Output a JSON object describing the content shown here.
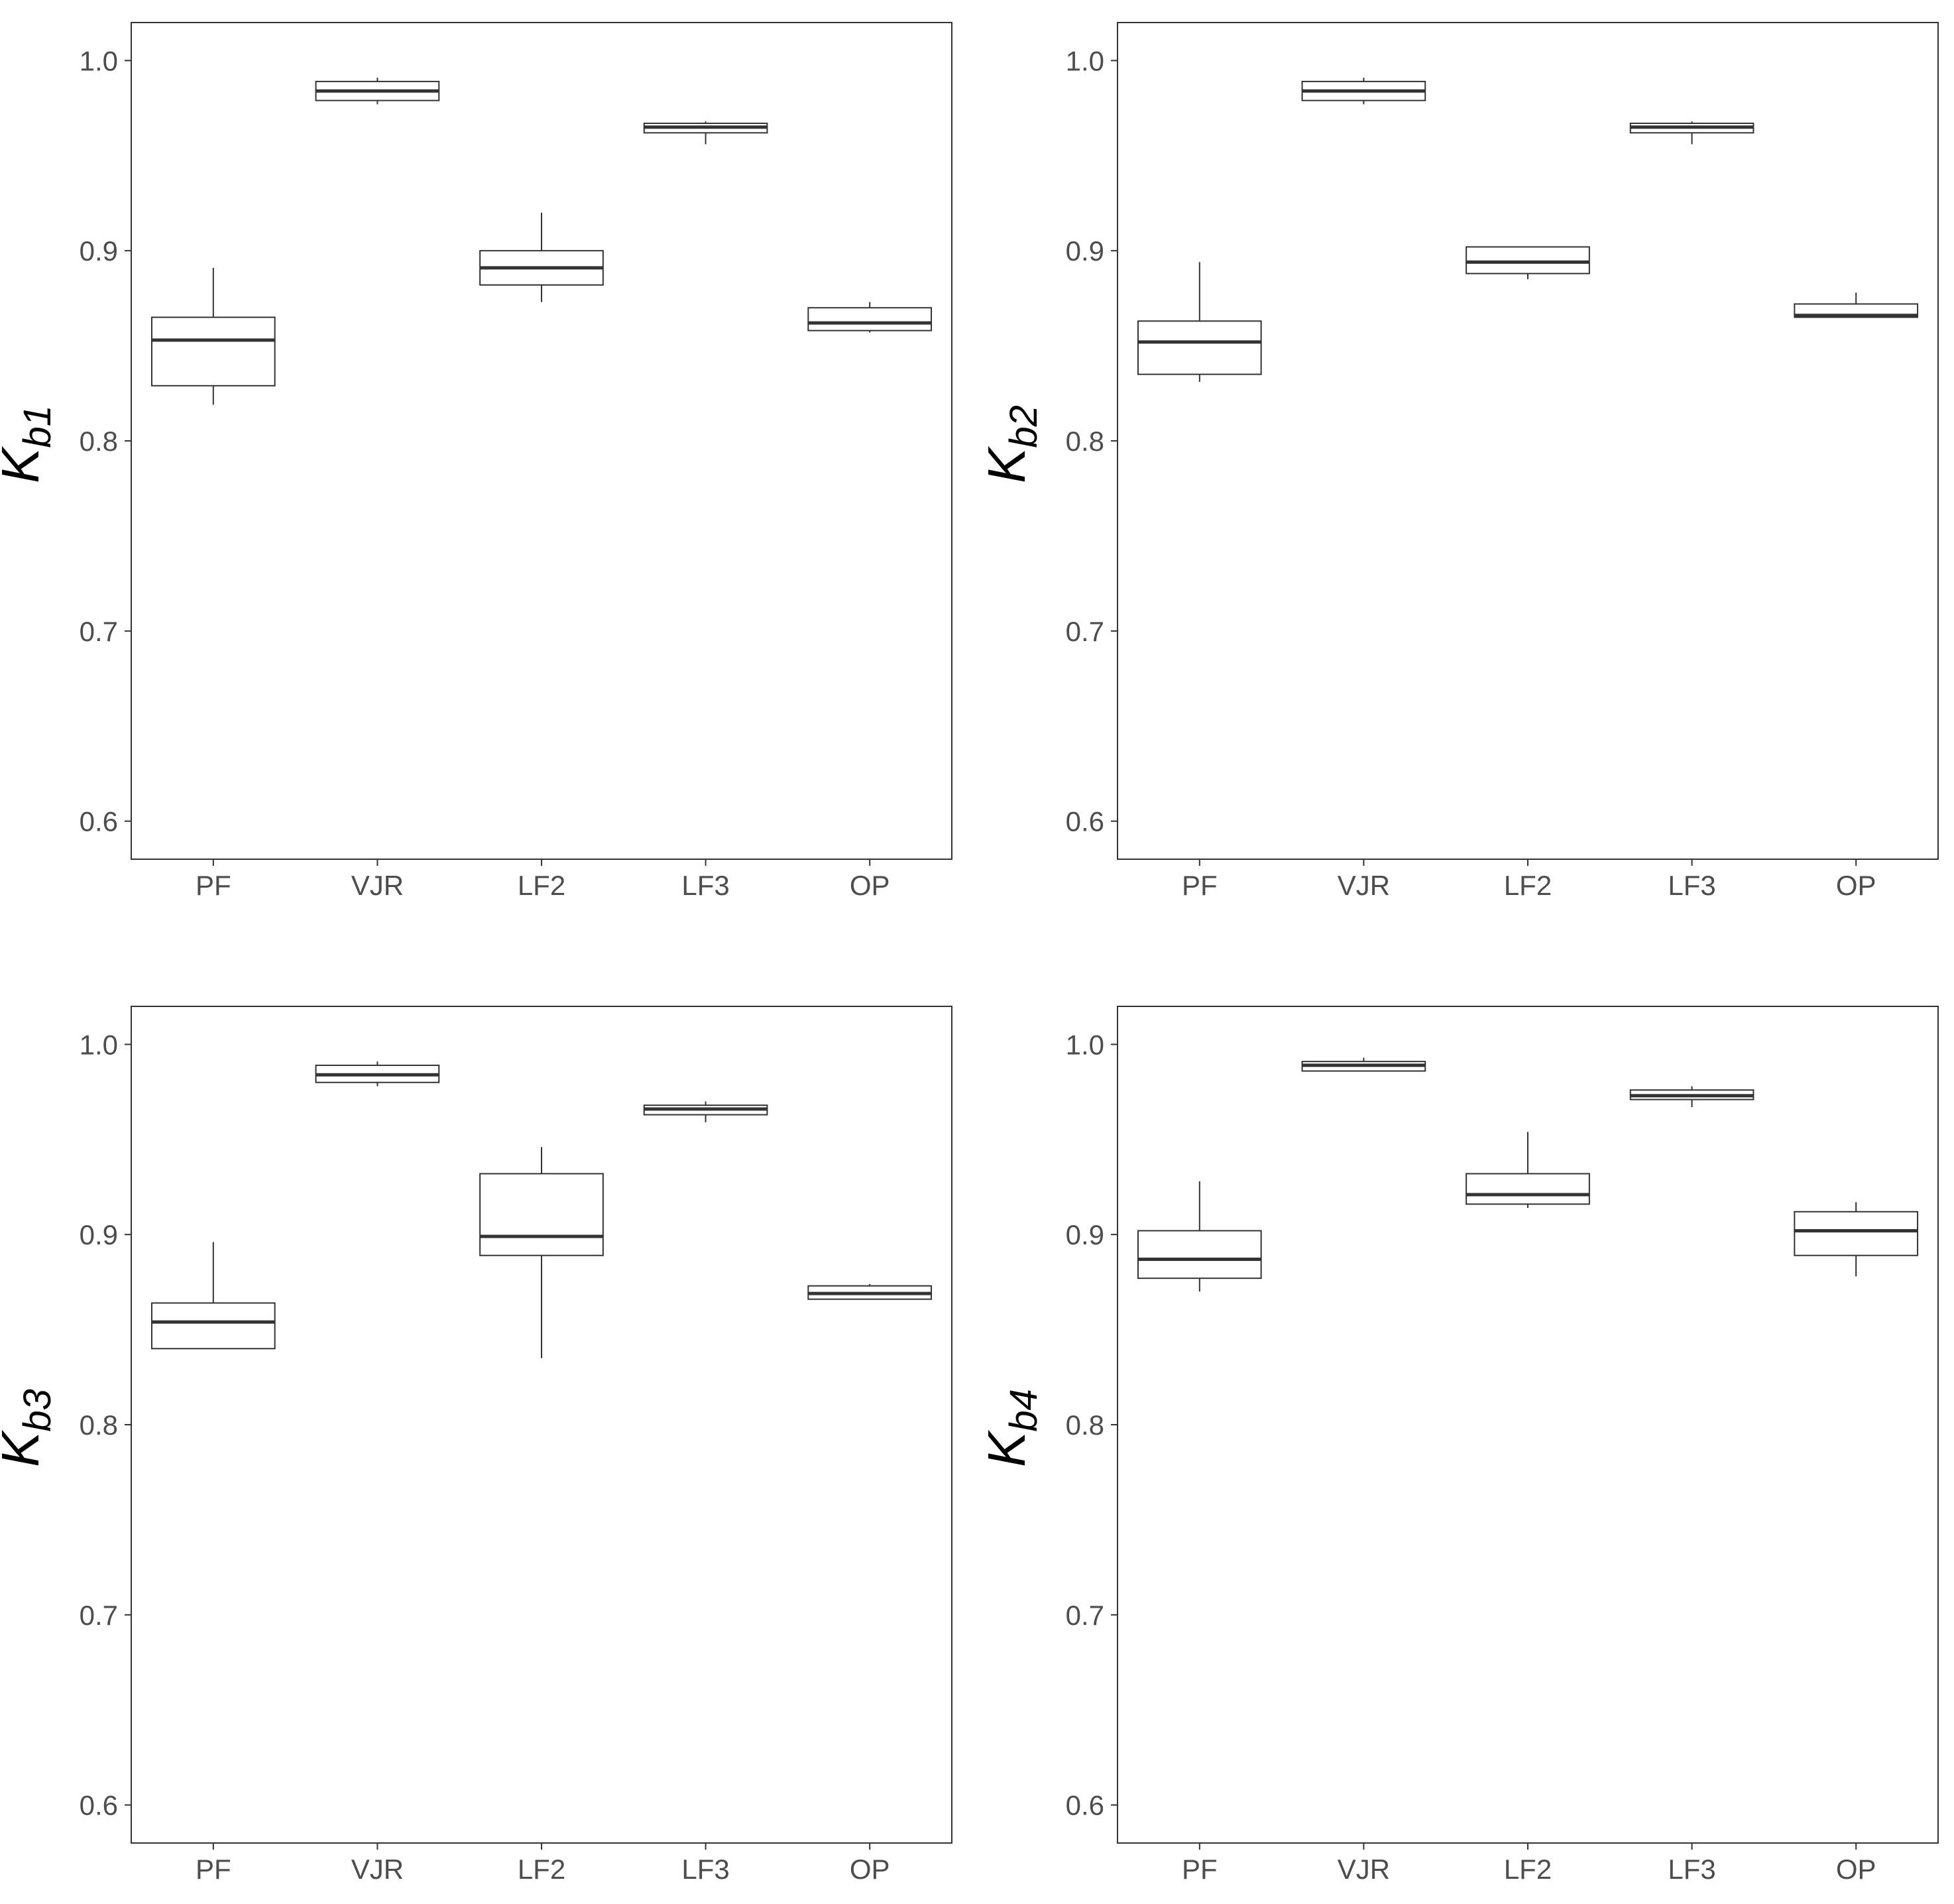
{
  "colors": {
    "box_fill": "#ffffff",
    "box_stroke": "#333333",
    "median": "#333333",
    "axis": "#333333",
    "tick_text": "#4d4d4d",
    "background": "#ffffff"
  },
  "chart_data": [
    {
      "type": "box",
      "title": "",
      "ylabel": "K",
      "ylabel_sub": "b1",
      "categories": [
        "PF",
        "VJR",
        "LF2",
        "LF3",
        "OP"
      ],
      "ylim": [
        0.58,
        1.02
      ],
      "yticks": [
        "0.6",
        "0.7",
        "0.8",
        "0.9",
        "1.0"
      ],
      "grid": false,
      "boxes": [
        {
          "category": "PF",
          "min": 0.819,
          "q1": 0.829,
          "median": 0.853,
          "q3": 0.865,
          "max": 0.891
        },
        {
          "category": "VJR",
          "min": 0.977,
          "q1": 0.979,
          "median": 0.984,
          "q3": 0.989,
          "max": 0.991
        },
        {
          "category": "LF2",
          "min": 0.873,
          "q1": 0.882,
          "median": 0.891,
          "q3": 0.9,
          "max": 0.92
        },
        {
          "category": "LF3",
          "min": 0.956,
          "q1": 0.962,
          "median": 0.965,
          "q3": 0.967,
          "max": 0.968
        },
        {
          "category": "OP",
          "min": 0.857,
          "q1": 0.858,
          "median": 0.862,
          "q3": 0.87,
          "max": 0.873
        }
      ]
    },
    {
      "type": "box",
      "title": "",
      "ylabel": "K",
      "ylabel_sub": "b2",
      "categories": [
        "PF",
        "VJR",
        "LF2",
        "LF3",
        "OP"
      ],
      "ylim": [
        0.58,
        1.02
      ],
      "yticks": [
        "0.6",
        "0.7",
        "0.8",
        "0.9",
        "1.0"
      ],
      "grid": false,
      "boxes": [
        {
          "category": "PF",
          "min": 0.831,
          "q1": 0.835,
          "median": 0.852,
          "q3": 0.863,
          "max": 0.894
        },
        {
          "category": "VJR",
          "min": 0.977,
          "q1": 0.979,
          "median": 0.984,
          "q3": 0.989,
          "max": 0.991
        },
        {
          "category": "LF2",
          "min": 0.885,
          "q1": 0.888,
          "median": 0.894,
          "q3": 0.902,
          "max": 0.902
        },
        {
          "category": "LF3",
          "min": 0.956,
          "q1": 0.962,
          "median": 0.965,
          "q3": 0.967,
          "max": 0.968
        },
        {
          "category": "OP",
          "min": 0.865,
          "q1": 0.865,
          "median": 0.866,
          "q3": 0.872,
          "max": 0.878
        }
      ]
    },
    {
      "type": "box",
      "title": "",
      "ylabel": "K",
      "ylabel_sub": "b3",
      "categories": [
        "PF",
        "VJR",
        "LF2",
        "LF3",
        "OP"
      ],
      "ylim": [
        0.58,
        1.02
      ],
      "yticks": [
        "0.6",
        "0.7",
        "0.8",
        "0.9",
        "1.0"
      ],
      "grid": false,
      "boxes": [
        {
          "category": "PF",
          "min": 0.84,
          "q1": 0.84,
          "median": 0.854,
          "q3": 0.864,
          "max": 0.896
        },
        {
          "category": "VJR",
          "min": 0.978,
          "q1": 0.98,
          "median": 0.984,
          "q3": 0.989,
          "max": 0.991
        },
        {
          "category": "LF2",
          "min": 0.835,
          "q1": 0.889,
          "median": 0.899,
          "q3": 0.932,
          "max": 0.946
        },
        {
          "category": "LF3",
          "min": 0.959,
          "q1": 0.963,
          "median": 0.966,
          "q3": 0.968,
          "max": 0.97
        },
        {
          "category": "OP",
          "min": 0.866,
          "q1": 0.866,
          "median": 0.869,
          "q3": 0.873,
          "max": 0.874
        }
      ]
    },
    {
      "type": "box",
      "title": "",
      "ylabel": "K",
      "ylabel_sub": "b4",
      "categories": [
        "PF",
        "VJR",
        "LF2",
        "LF3",
        "OP"
      ],
      "ylim": [
        0.58,
        1.02
      ],
      "yticks": [
        "0.6",
        "0.7",
        "0.8",
        "0.9",
        "1.0"
      ],
      "grid": false,
      "boxes": [
        {
          "category": "PF",
          "min": 0.87,
          "q1": 0.877,
          "median": 0.887,
          "q3": 0.902,
          "max": 0.928
        },
        {
          "category": "VJR",
          "min": 0.986,
          "q1": 0.986,
          "median": 0.989,
          "q3": 0.991,
          "max": 0.993
        },
        {
          "category": "LF2",
          "min": 0.914,
          "q1": 0.916,
          "median": 0.921,
          "q3": 0.932,
          "max": 0.954
        },
        {
          "category": "LF3",
          "min": 0.967,
          "q1": 0.971,
          "median": 0.973,
          "q3": 0.976,
          "max": 0.978
        },
        {
          "category": "OP",
          "min": 0.878,
          "q1": 0.889,
          "median": 0.902,
          "q3": 0.912,
          "max": 0.917
        }
      ]
    }
  ]
}
